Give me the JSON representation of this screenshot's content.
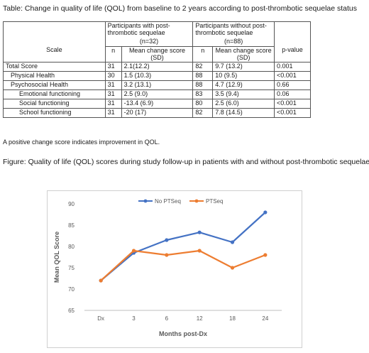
{
  "table": {
    "caption": "Table: Change in quality of life (QOL) from baseline to 2 years according to post-thrombotic sequelae status",
    "group_with": "Participants with post-thrombotic sequelae",
    "group_without": "Participants without post-thrombotic sequelae",
    "n_with": "(n=32)",
    "n_without": "(n=88)",
    "col_scale": "Scale",
    "col_n": "n",
    "col_mean": "Mean change score (SD)",
    "col_p": "p-value",
    "rows": [
      {
        "scale": "Total Score",
        "n1": "31",
        "m1": "2.1(12.2)",
        "n2": "82",
        "m2": "9.7 (13.2)",
        "p": "0.001"
      },
      {
        "scale": "Physical Health",
        "n1": "30",
        "m1": "1.5 (10.3)",
        "n2": "88",
        "m2": "10 (9.5)",
        "p": "<0.001"
      },
      {
        "scale": "Psychosocial Health",
        "n1": "31",
        "m1": "3.2 (13.1)",
        "n2": "88",
        "m2": "4.7 (12.9)",
        "p": "0.66"
      },
      {
        "scale": "Emotional functioning",
        "n1": "31",
        "m1": "2.5 (9.0)",
        "n2": "83",
        "m2": "3.5 (9.4)",
        "p": "0.06"
      },
      {
        "scale": "Social functioning",
        "n1": "31",
        "m1": "-13.4 (6.9)",
        "n2": "80",
        "m2": "2.5 (6.0)",
        "p": "<0.001"
      },
      {
        "scale": "School functioning",
        "n1": "31",
        "m1": "-20 (17)",
        "n2": "82",
        "m2": "7.8 (14.5)",
        "p": "<0.001"
      }
    ],
    "footnote": "A positive change score indicates improvement in QOL."
  },
  "figure": {
    "caption": "Figure: Quality of life (QOL) scores during study follow-up in patients with and without post-thrombotic sequelae"
  },
  "chart_data": {
    "type": "line",
    "categories": [
      "Dx",
      "3",
      "6",
      "12",
      "18",
      "24"
    ],
    "series": [
      {
        "name": "No PTSeq",
        "color": "#4472C4",
        "values": [
          72,
          78.5,
          81.5,
          83.3,
          81,
          88
        ]
      },
      {
        "name": "PTSeq",
        "color": "#ED7D31",
        "values": [
          72,
          79,
          78,
          79,
          75,
          78
        ]
      }
    ],
    "xlabel": "Months post-Dx",
    "ylabel": "Mean QOL Score",
    "ylim": [
      65,
      90
    ],
    "yticks": [
      65,
      70,
      75,
      80,
      85,
      90
    ],
    "legend": "top-center",
    "grid": false
  }
}
